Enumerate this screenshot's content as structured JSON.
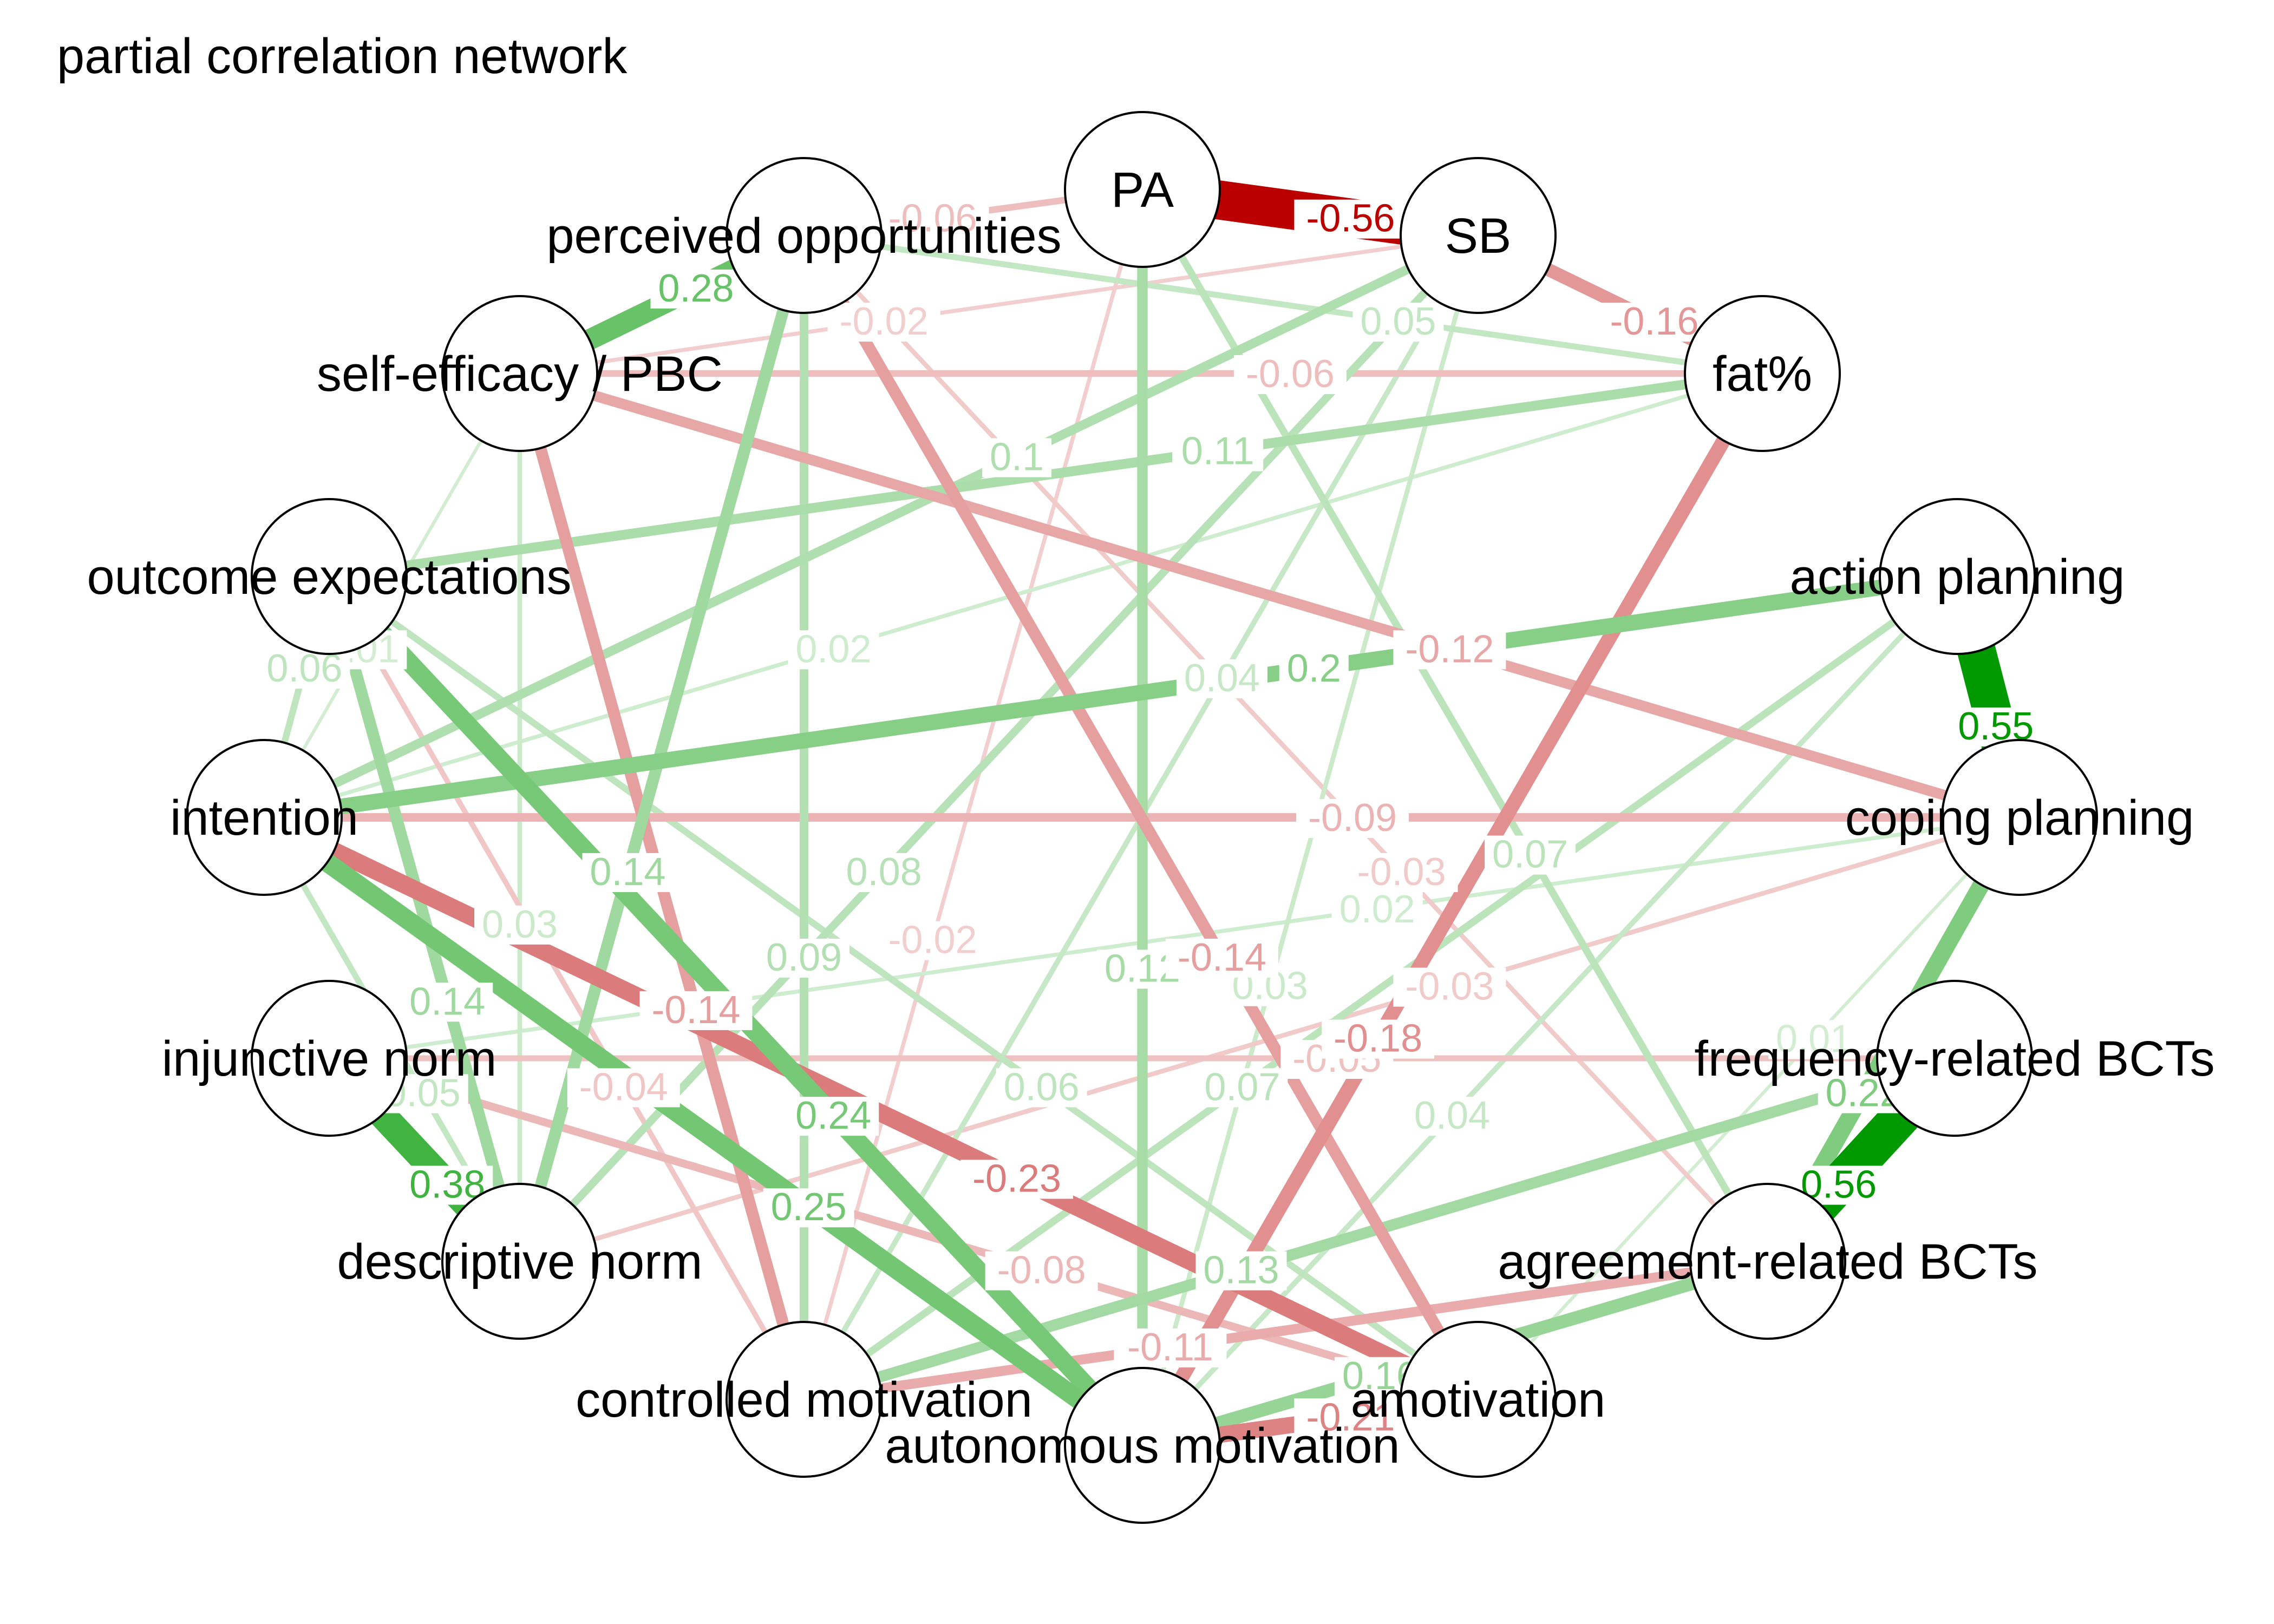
{
  "title": "partial correlation network",
  "colors": {
    "positive": "#009900",
    "negative": "#bb0000",
    "node_fill": "#ffffff",
    "node_stroke": "#000000"
  },
  "nodes": [
    {
      "id": "PA",
      "label": "PA"
    },
    {
      "id": "SB",
      "label": "SB"
    },
    {
      "id": "fat",
      "label": "fat%"
    },
    {
      "id": "ap",
      "label": "action planning"
    },
    {
      "id": "cp",
      "label": "coping planning"
    },
    {
      "id": "fb",
      "label": "frequency-related BCTs"
    },
    {
      "id": "ab",
      "label": "agreement-related BCTs"
    },
    {
      "id": "am",
      "label": "amotivation"
    },
    {
      "id": "aum",
      "label": "autonomous motivation"
    },
    {
      "id": "cm",
      "label": "controlled motivation"
    },
    {
      "id": "dn",
      "label": "descriptive norm"
    },
    {
      "id": "in",
      "label": "injunctive norm"
    },
    {
      "id": "int",
      "label": "intention"
    },
    {
      "id": "oe",
      "label": "outcome expectations"
    },
    {
      "id": "se",
      "label": "self-efficacy / PBC"
    },
    {
      "id": "po",
      "label": "perceived opportunities"
    }
  ],
  "edges": [
    {
      "from": "PA",
      "to": "SB",
      "weight": -0.56,
      "label": "-0.56"
    },
    {
      "from": "fb",
      "to": "ab",
      "weight": 0.56,
      "label": "0.56"
    },
    {
      "from": "ap",
      "to": "cp",
      "weight": 0.55,
      "label": "0.55"
    },
    {
      "from": "in",
      "to": "dn",
      "weight": 0.38,
      "label": "0.38"
    },
    {
      "from": "se",
      "to": "po",
      "weight": 0.28,
      "label": "0.28"
    },
    {
      "from": "int",
      "to": "aum",
      "weight": 0.25,
      "label": "0.25"
    },
    {
      "from": "oe",
      "to": "aum",
      "weight": 0.24,
      "label": "0.24"
    },
    {
      "from": "int",
      "to": "am",
      "weight": -0.23,
      "label": "-0.23"
    },
    {
      "from": "cp",
      "to": "ab",
      "weight": 0.22,
      "label": "0.22"
    },
    {
      "from": "aum",
      "to": "am",
      "weight": -0.21,
      "label": "-0.21"
    },
    {
      "from": "int",
      "to": "ap",
      "weight": 0.2,
      "label": "0.2"
    },
    {
      "from": "fat",
      "to": "aum",
      "weight": -0.18,
      "label": "-0.18"
    },
    {
      "from": "SB",
      "to": "fat",
      "weight": -0.16,
      "label": "-0.16"
    },
    {
      "from": "ab",
      "to": "aum",
      "weight": 0.16,
      "label": "0.16"
    },
    {
      "from": "se",
      "to": "cm",
      "weight": -0.14,
      "label": "-0.14"
    },
    {
      "from": "po",
      "to": "am",
      "weight": -0.14,
      "label": "-0.14"
    },
    {
      "from": "po",
      "to": "dn",
      "weight": 0.14,
      "label": "0.14"
    },
    {
      "from": "oe",
      "to": "dn",
      "weight": 0.14,
      "label": "0.14"
    },
    {
      "from": "fb",
      "to": "cm",
      "weight": 0.13,
      "label": "0.13"
    },
    {
      "from": "PA",
      "to": "aum",
      "weight": 0.12,
      "label": "0.12"
    },
    {
      "from": "se",
      "to": "cp",
      "weight": -0.12,
      "label": "-0.12"
    },
    {
      "from": "oe",
      "to": "fat",
      "weight": 0.11,
      "label": "0.11"
    },
    {
      "from": "ab",
      "to": "cm",
      "weight": -0.11,
      "label": "-0.11"
    },
    {
      "from": "int",
      "to": "SB",
      "weight": 0.1,
      "label": "0.1"
    },
    {
      "from": "int",
      "to": "cp",
      "weight": -0.09,
      "label": "-0.09"
    },
    {
      "from": "po",
      "to": "cm",
      "weight": 0.09,
      "label": "0.09"
    },
    {
      "from": "SB",
      "to": "dn",
      "weight": 0.08,
      "label": "0.08"
    },
    {
      "from": "in",
      "to": "am",
      "weight": -0.08,
      "label": "-0.08"
    },
    {
      "from": "PA",
      "to": "ab",
      "weight": 0.07,
      "label": "0.07"
    },
    {
      "from": "ap",
      "to": "cm",
      "weight": 0.07,
      "label": "0.07"
    },
    {
      "from": "se",
      "to": "fat",
      "weight": -0.06,
      "label": "-0.06"
    },
    {
      "from": "int",
      "to": "oe",
      "weight": 0.06,
      "label": "0.06"
    },
    {
      "from": "oe",
      "to": "am",
      "weight": 0.06,
      "label": "0.06"
    },
    {
      "from": "PA",
      "to": "po",
      "weight": -0.06,
      "label": "-0.06"
    },
    {
      "from": "po",
      "to": "fat",
      "weight": 0.05,
      "label": "0.05"
    },
    {
      "from": "in",
      "to": "fb",
      "weight": -0.05,
      "label": "-0.05"
    },
    {
      "from": "int",
      "to": "dn",
      "weight": 0.05,
      "label": "0.05"
    },
    {
      "from": "ap",
      "to": "aum",
      "weight": 0.04,
      "label": "0.04"
    },
    {
      "from": "cm",
      "to": "SB",
      "weight": 0.04,
      "label": "0.04"
    },
    {
      "from": "oe",
      "to": "cm",
      "weight": -0.04,
      "label": "-0.04"
    },
    {
      "from": "po",
      "to": "ab",
      "weight": -0.03,
      "label": "-0.03"
    },
    {
      "from": "SB",
      "to": "aum",
      "weight": 0.03,
      "label": "0.03"
    },
    {
      "from": "dn",
      "to": "cp",
      "weight": -0.03,
      "label": "-0.03"
    },
    {
      "from": "se",
      "to": "dn",
      "weight": 0.03,
      "label": "0.03"
    },
    {
      "from": "PA",
      "to": "cm",
      "weight": -0.02,
      "label": "-0.02"
    },
    {
      "from": "fat",
      "to": "int",
      "weight": 0.02,
      "label": "0.02"
    },
    {
      "from": "in",
      "to": "cp",
      "weight": 0.02,
      "label": "0.02"
    },
    {
      "from": "SB",
      "to": "se",
      "weight": -0.02,
      "label": "-0.02"
    },
    {
      "from": "am",
      "to": "cp",
      "weight": 0.01,
      "label": "0.01"
    },
    {
      "from": "se",
      "to": "int",
      "weight": 0.01,
      "label": "0.01"
    }
  ]
}
